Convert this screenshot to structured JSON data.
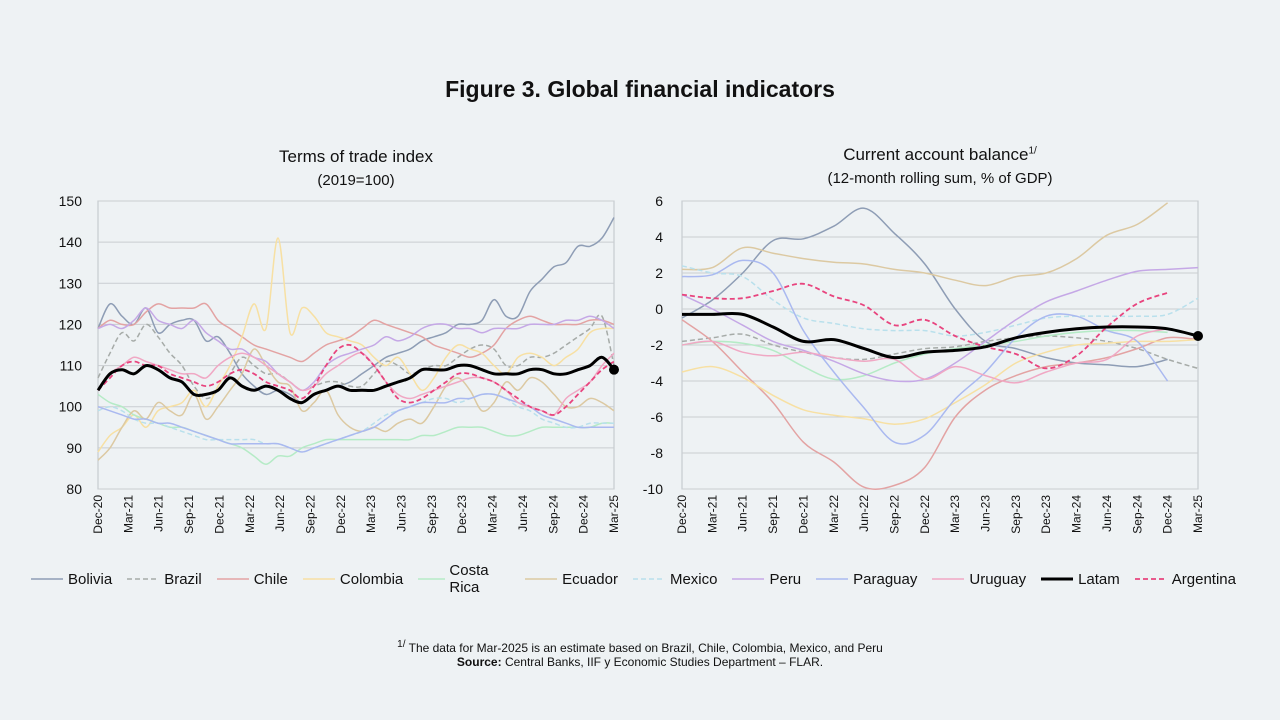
{
  "figure": {
    "title": "Figure 3. Global financial indicators",
    "footnote_mark": "1/",
    "footnote_text": "The data for Mar-2025 is an estimate based on Brazil, Chile, Colombia, Mexico, and Peru",
    "source_label": "Source:",
    "source_text": " Central Banks, IIF y Economic Studies Department – FLAR."
  },
  "series_styles": {
    "Bolivia": {
      "color": "#8e9db5",
      "dash": false,
      "width": 1.5
    },
    "Brazil": {
      "color": "#a6aba8",
      "dash": true,
      "width": 1.5
    },
    "Chile": {
      "color": "#e3a3a3",
      "dash": false,
      "width": 1.5
    },
    "Colombia": {
      "color": "#f7e0a3",
      "dash": false,
      "width": 1.5
    },
    "Costa Rica": {
      "color": "#b5ebc6",
      "dash": false,
      "width": 1.5
    },
    "Ecuador": {
      "color": "#dcc9a2",
      "dash": false,
      "width": 1.5
    },
    "Mexico": {
      "color": "#b9e0ec",
      "dash": true,
      "width": 1.5
    },
    "Peru": {
      "color": "#c5a8e6",
      "dash": false,
      "width": 1.5
    },
    "Paraguay": {
      "color": "#aab9f0",
      "dash": false,
      "width": 1.5
    },
    "Uruguay": {
      "color": "#f0a8c4",
      "dash": false,
      "width": 1.5
    },
    "Latam": {
      "color": "#000000",
      "dash": false,
      "width": 3
    },
    "Argentina": {
      "color": "#e8447e",
      "dash": true,
      "width": 1.8
    }
  },
  "legend": [
    "Bolivia",
    "Brazil",
    "Chile",
    "Colombia",
    "Costa Rica",
    "Ecuador",
    "Mexico",
    "Peru",
    "Paraguay",
    "Uruguay",
    "Latam",
    "Argentina"
  ],
  "chart_data": [
    {
      "type": "line",
      "title": "Terms of trade index",
      "subtitle": "(2019=100)",
      "ylim": [
        80,
        150
      ],
      "yticks": [
        80,
        90,
        100,
        110,
        120,
        130,
        140,
        150
      ],
      "x_tick_labels": [
        "Dec-20",
        "Mar-21",
        "Jun-21",
        "Sep-21",
        "Dec-21",
        "Mar-22",
        "Jun-22",
        "Sep-22",
        "Dec-22",
        "Mar-23",
        "Jun-23",
        "Sep-23",
        "Dec-23",
        "Mar-24",
        "Jun-24",
        "Sep-24",
        "Dec-24",
        "Mar-25"
      ],
      "grid": true,
      "end_marker": {
        "series": "Latam",
        "x": "Mar-25",
        "y": 109
      },
      "series": [
        {
          "name": "Bolivia",
          "values": [
            119,
            125,
            122,
            120,
            124,
            118,
            120,
            121,
            121,
            116,
            117,
            113,
            108,
            105,
            103,
            104,
            103,
            101,
            103,
            104,
            105,
            106,
            108,
            110,
            112,
            113,
            114,
            116,
            117,
            118,
            120,
            120,
            121,
            126,
            122,
            122,
            128,
            131,
            134,
            135,
            139,
            139,
            141,
            146
          ]
        },
        {
          "name": "Brazil",
          "values": [
            107,
            113,
            118,
            116,
            120,
            117,
            113,
            110,
            105,
            102,
            104,
            108,
            112,
            110,
            108,
            108,
            106,
            104,
            105,
            106,
            106,
            105,
            105,
            108,
            111,
            110,
            108,
            109,
            110,
            110,
            112,
            114,
            115,
            114,
            110,
            110,
            112,
            112,
            113,
            115,
            117,
            119,
            122,
            110
          ]
        },
        {
          "name": "Chile",
          "values": [
            119,
            121,
            120,
            120,
            123,
            125,
            124,
            124,
            124,
            125,
            121,
            119,
            117,
            115,
            114,
            113,
            112,
            111,
            113,
            115,
            116,
            117,
            119,
            121,
            120,
            119,
            118,
            117,
            115,
            114,
            113,
            112,
            113,
            115,
            119,
            121,
            122,
            121,
            120,
            120,
            120,
            121,
            121,
            120
          ]
        },
        {
          "name": "Colombia",
          "values": [
            89,
            93,
            95,
            98,
            95,
            99,
            100,
            101,
            104,
            100,
            105,
            110,
            117,
            125,
            119,
            141,
            118,
            124,
            122,
            118,
            117,
            116,
            115,
            112,
            110,
            112,
            108,
            104,
            107,
            112,
            115,
            114,
            113,
            110,
            108,
            112,
            113,
            112,
            110,
            112,
            114,
            118,
            119,
            119
          ]
        },
        {
          "name": "Costa Rica",
          "values": [
            103,
            101,
            100,
            98,
            97,
            96,
            95,
            95,
            94,
            93,
            92,
            91,
            90,
            88,
            86,
            88,
            88,
            90,
            91,
            92,
            92,
            92,
            92,
            92,
            92,
            92,
            92,
            93,
            93,
            94,
            95,
            95,
            95,
            94,
            93,
            93,
            94,
            95,
            95,
            95,
            95,
            95,
            96,
            96
          ]
        },
        {
          "name": "Ecuador",
          "values": [
            87,
            90,
            95,
            99,
            97,
            101,
            99,
            98,
            103,
            97,
            100,
            104,
            108,
            114,
            110,
            106,
            105,
            99,
            101,
            104,
            98,
            95,
            94,
            95,
            94,
            96,
            97,
            96,
            100,
            105,
            107,
            104,
            99,
            101,
            106,
            104,
            107,
            106,
            103,
            100,
            100,
            102,
            101,
            99
          ]
        },
        {
          "name": "Mexico",
          "values": [
            99,
            100,
            99,
            97,
            96,
            96,
            95,
            94,
            93,
            92,
            92,
            92,
            92,
            92,
            91,
            91,
            90,
            89,
            90,
            91,
            92,
            93,
            94,
            96,
            98,
            99,
            100,
            101,
            102,
            102,
            101,
            102,
            103,
            103,
            102,
            100,
            99,
            97,
            96,
            95,
            95,
            96,
            96,
            96
          ]
        },
        {
          "name": "Peru",
          "values": [
            119,
            120,
            119,
            121,
            124,
            121,
            120,
            119,
            121,
            118,
            116,
            114,
            114,
            112,
            111,
            108,
            106,
            104,
            106,
            110,
            112,
            113,
            114,
            115,
            117,
            116,
            117,
            119,
            120,
            120,
            119,
            119,
            118,
            119,
            119,
            119,
            120,
            120,
            120,
            121,
            121,
            122,
            121,
            119
          ]
        },
        {
          "name": "Paraguay",
          "values": [
            100,
            99,
            98,
            97,
            97,
            96,
            96,
            95,
            94,
            93,
            92,
            91,
            91,
            91,
            91,
            91,
            90,
            89,
            90,
            91,
            92,
            93,
            94,
            95,
            97,
            99,
            100,
            101,
            101,
            101,
            102,
            102,
            103,
            103,
            102,
            101,
            100,
            98,
            97,
            96,
            95,
            95,
            95,
            95
          ]
        },
        {
          "name": "Uruguay",
          "values": [
            104,
            108,
            110,
            112,
            111,
            110,
            109,
            108,
            108,
            107,
            110,
            112,
            113,
            112,
            110,
            108,
            106,
            104,
            105,
            108,
            110,
            112,
            113,
            110,
            106,
            103,
            102,
            103,
            104,
            105,
            106,
            107,
            107,
            106,
            104,
            101,
            100,
            99,
            98,
            102,
            104,
            106,
            110,
            113
          ]
        },
        {
          "name": "Latam",
          "values": [
            104,
            108,
            109,
            108,
            110,
            109,
            107,
            106,
            103,
            103,
            104,
            107,
            105,
            104,
            105,
            104,
            102,
            101,
            103,
            104,
            105,
            104,
            104,
            104,
            105,
            106,
            107,
            109,
            109,
            109,
            110,
            110,
            109,
            108,
            108,
            108,
            109,
            109,
            108,
            108,
            109,
            110,
            112,
            109
          ]
        },
        {
          "name": "Argentina",
          "values": [
            104,
            107,
            110,
            111,
            110,
            110,
            108,
            107,
            106,
            105,
            106,
            108,
            109,
            108,
            106,
            105,
            104,
            102,
            105,
            110,
            114,
            115,
            113,
            110,
            106,
            102,
            101,
            102,
            104,
            106,
            108,
            108,
            107,
            106,
            104,
            102,
            100,
            99,
            98,
            100,
            103,
            106,
            109,
            111
          ]
        }
      ]
    },
    {
      "type": "line",
      "title": "Current account balance",
      "title_sup": "1/",
      "subtitle": "(12-month rolling sum, % of GDP)",
      "ylim": [
        -10,
        6
      ],
      "yticks": [
        -10,
        -8,
        -6,
        -4,
        -2,
        0,
        2,
        4,
        6
      ],
      "x_tick_labels": [
        "Dec-20",
        "Mar-21",
        "Jun-21",
        "Sep-21",
        "Dec-21",
        "Mar-22",
        "Jun-22",
        "Sep-22",
        "Dec-22",
        "Mar-23",
        "Jun-23",
        "Sep-23",
        "Dec-23",
        "Mar-24",
        "Jun-24",
        "Sep-24",
        "Dec-24",
        "Mar-25"
      ],
      "grid": true,
      "end_marker": {
        "series": "Latam",
        "x": "Mar-25",
        "y": -1.5
      },
      "series": [
        {
          "name": "Bolivia",
          "values": [
            -0.5,
            0.5,
            2.0,
            3.8,
            3.9,
            4.6,
            5.6,
            4.2,
            2.5,
            0.0,
            -1.8,
            -2.2,
            -2.7,
            -3.0,
            -3.1,
            -3.2,
            -2.8,
            null
          ]
        },
        {
          "name": "Brazil",
          "values": [
            -1.8,
            -1.6,
            -1.4,
            -2.0,
            -2.4,
            -2.7,
            -2.8,
            -2.5,
            -2.2,
            -2.1,
            -1.8,
            -1.6,
            -1.5,
            -1.6,
            -1.8,
            -2.2,
            -2.8,
            -3.3
          ]
        },
        {
          "name": "Chile",
          "values": [
            -0.6,
            -1.8,
            -3.5,
            -5.2,
            -7.4,
            -8.5,
            -9.9,
            -9.8,
            -8.8,
            -6.0,
            -4.5,
            -3.7,
            -3.2,
            -3.0,
            -2.7,
            -2.2,
            -1.6,
            -1.7
          ]
        },
        {
          "name": "Colombia",
          "values": [
            -3.5,
            -3.2,
            -3.8,
            -4.8,
            -5.6,
            -5.9,
            -6.1,
            -6.4,
            -6.1,
            -5.2,
            -4.2,
            -3.0,
            -2.4,
            -2.0,
            -1.9,
            -1.8,
            -1.8,
            -1.7
          ]
        },
        {
          "name": "Costa Rica",
          "values": [
            -2.0,
            -1.8,
            -1.9,
            -2.3,
            -3.2,
            -3.9,
            -3.7,
            -3.0,
            -2.5,
            -2.2,
            -2.0,
            -1.8,
            -1.5,
            -1.3,
            -1.2,
            -1.2,
            -1.3,
            null
          ]
        },
        {
          "name": "Ecuador",
          "values": [
            2.2,
            2.3,
            3.4,
            3.1,
            2.8,
            2.6,
            2.5,
            2.2,
            2.0,
            1.6,
            1.3,
            1.8,
            2.0,
            2.8,
            4.1,
            4.7,
            5.9,
            null
          ]
        },
        {
          "name": "Mexico",
          "values": [
            2.4,
            2.0,
            1.8,
            0.5,
            -0.5,
            -0.8,
            -1.1,
            -1.2,
            -1.2,
            -1.5,
            -1.3,
            -0.9,
            -0.5,
            -0.4,
            -0.4,
            -0.4,
            -0.3,
            0.6
          ]
        },
        {
          "name": "Peru",
          "values": [
            0.8,
            0.0,
            -0.9,
            -1.8,
            -2.3,
            -2.9,
            -3.6,
            -4.0,
            -3.9,
            -3.0,
            -1.8,
            -0.6,
            0.4,
            1.0,
            1.6,
            2.1,
            2.2,
            2.3
          ]
        },
        {
          "name": "Paraguay",
          "values": [
            1.8,
            1.9,
            2.7,
            2.0,
            -1.2,
            -3.5,
            -5.5,
            -7.4,
            -7.0,
            -5.0,
            -3.5,
            -1.6,
            -0.4,
            -0.4,
            -1.2,
            -1.8,
            -4.0,
            null
          ]
        },
        {
          "name": "Uruguay",
          "values": [
            -2.0,
            -1.8,
            -2.4,
            -2.6,
            -2.4,
            -2.7,
            -2.9,
            -2.8,
            -3.9,
            -3.2,
            -3.7,
            -4.1,
            -3.5,
            -3.0,
            -2.8,
            -1.5,
            -1.1,
            null
          ]
        },
        {
          "name": "Latam",
          "values": [
            -0.3,
            -0.3,
            -0.3,
            -1.0,
            -1.8,
            -1.7,
            -2.2,
            -2.7,
            -2.4,
            -2.3,
            -2.1,
            -1.6,
            -1.3,
            -1.1,
            -1.0,
            -1.0,
            -1.1,
            -1.5
          ]
        },
        {
          "name": "Argentina",
          "values": [
            0.8,
            0.6,
            0.6,
            1.0,
            1.4,
            0.7,
            0.2,
            -0.9,
            -0.6,
            -1.5,
            -2.1,
            -2.5,
            -3.3,
            -2.6,
            -1.0,
            0.3,
            0.9,
            null
          ]
        }
      ]
    }
  ]
}
